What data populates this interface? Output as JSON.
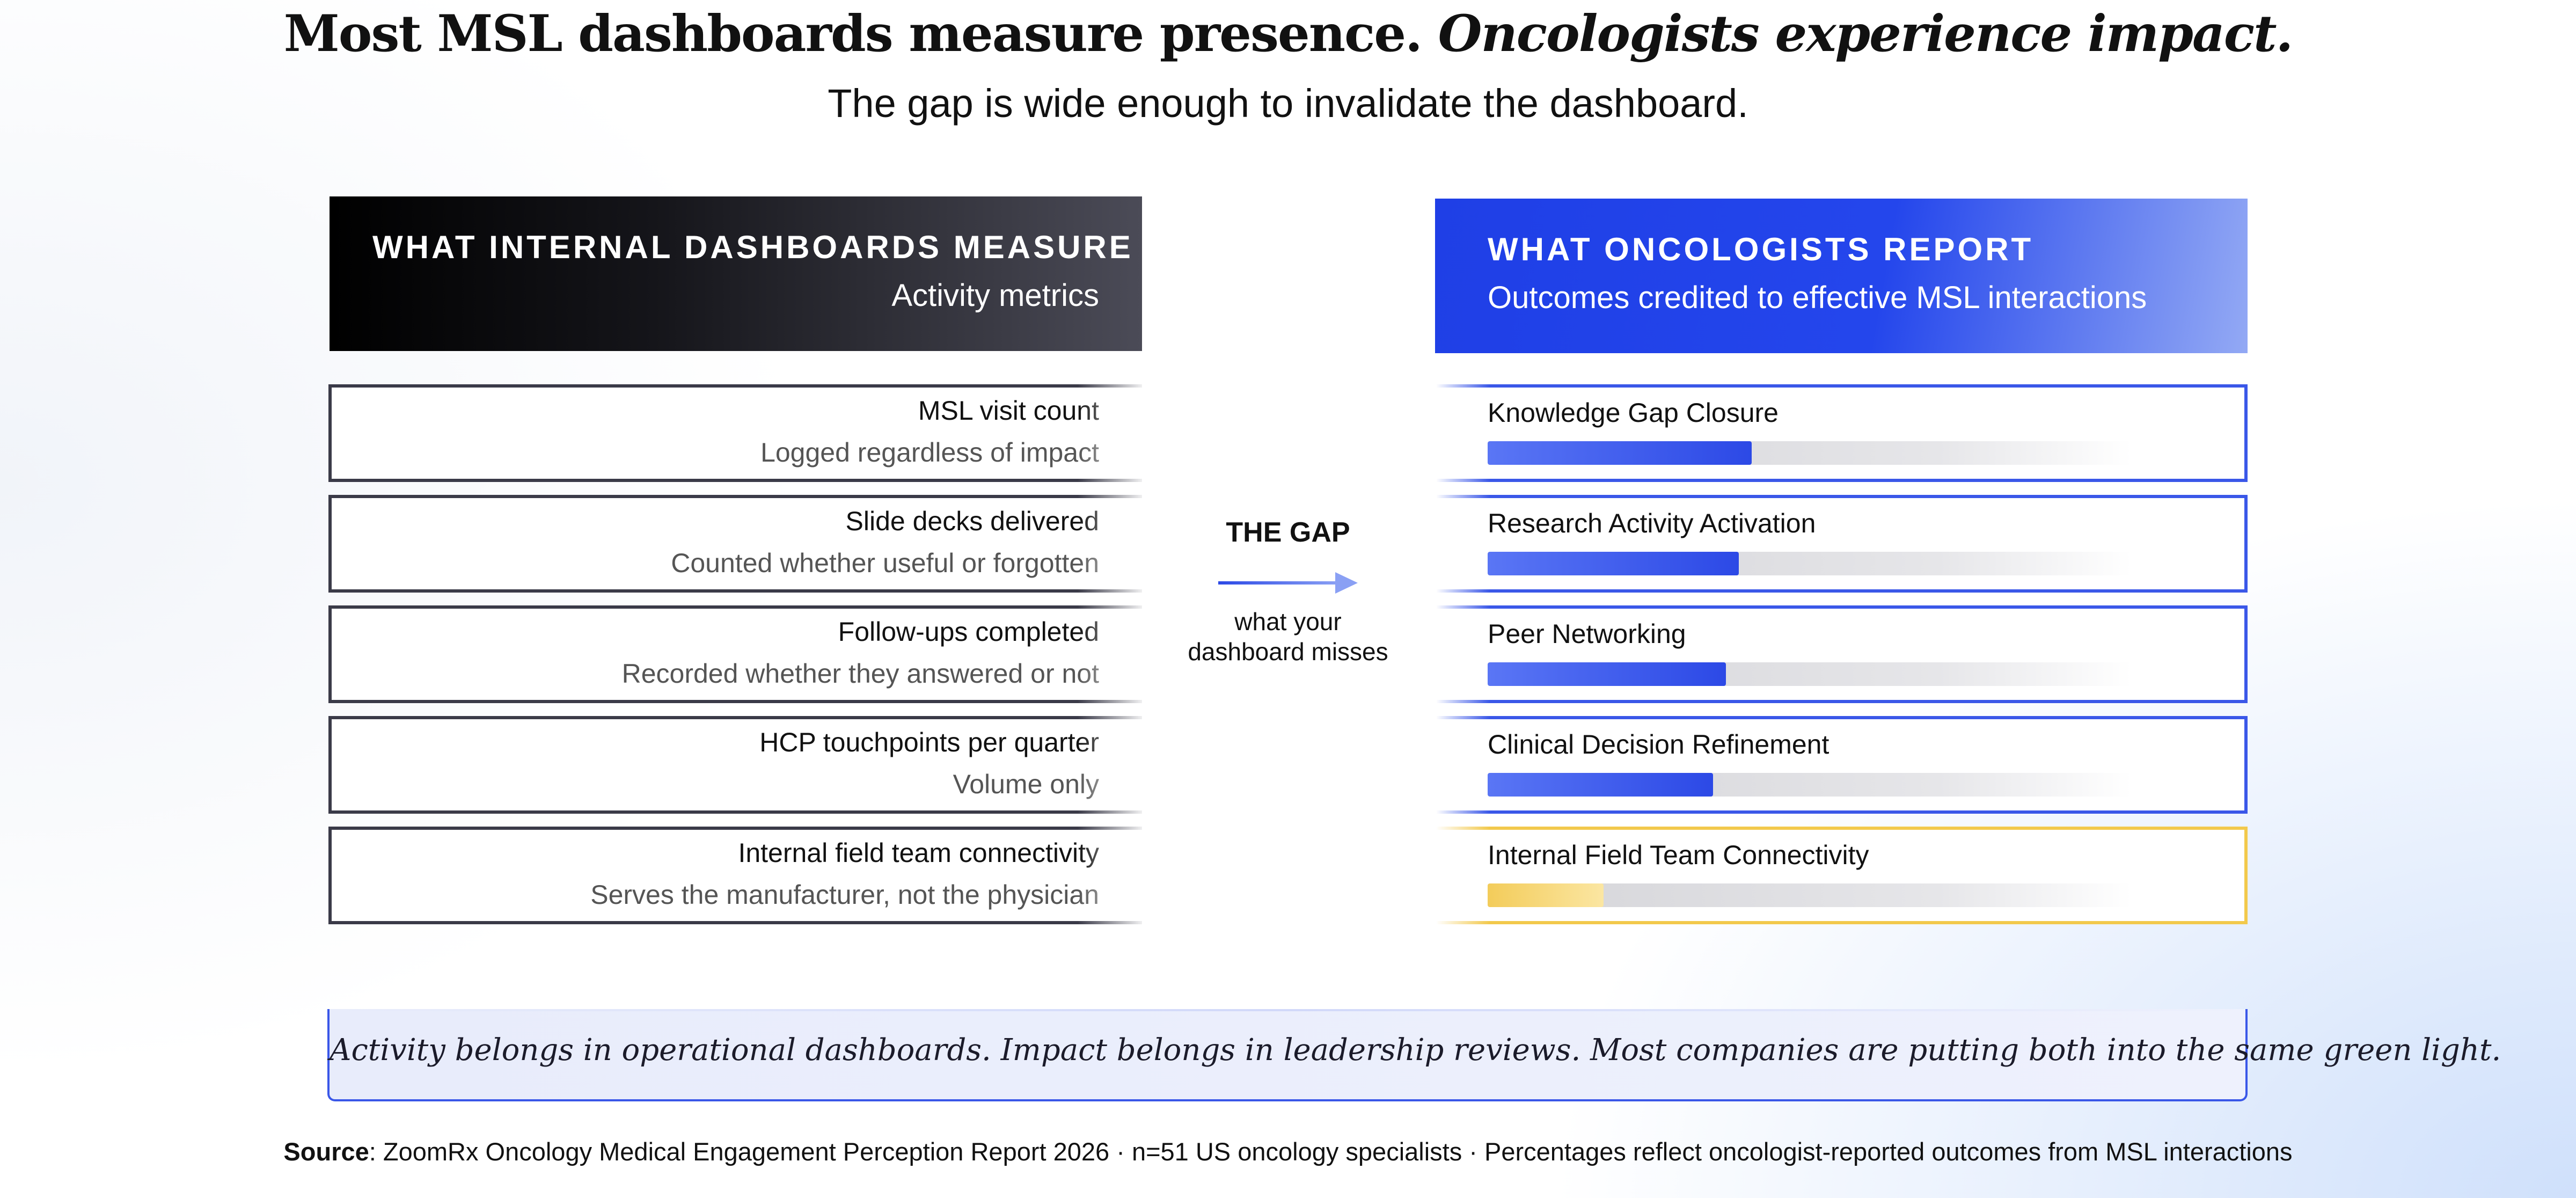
{
  "header": {
    "title_part1": "Most MSL dashboards measure presence.",
    "title_part2": "Oncologists experience impact.",
    "subtitle": "The gap is wide enough to invalidate the dashboard."
  },
  "left_panel": {
    "title": "WHAT INTERNAL DASHBOARDS MEASURE",
    "subtitle": "Activity metrics",
    "items": [
      {
        "title": "MSL visit count",
        "sub": "Logged regardless of impact"
      },
      {
        "title": "Slide decks delivered",
        "sub": "Counted whether useful or forgotten"
      },
      {
        "title": "Follow-ups completed",
        "sub": "Recorded whether they answered or not"
      },
      {
        "title": "HCP touchpoints per quarter",
        "sub": "Volume only"
      },
      {
        "title": "Internal field team connectivity",
        "sub": "Serves the manufacturer, not the physician"
      }
    ]
  },
  "gap": {
    "title": "THE GAP",
    "caption_line1": "what your",
    "caption_line2": "dashboard misses"
  },
  "right_panel": {
    "title": "WHAT ONCOLOGISTS REPORT",
    "subtitle": "Outcomes credited to effective MSL interactions"
  },
  "chart_data": {
    "type": "bar",
    "orientation": "horizontal",
    "categories": [
      "Knowledge Gap Closure",
      "Research Activity Activation",
      "Peer Networking",
      "Clinical Decision Refinement",
      "Internal Field Team Connectivity"
    ],
    "values": [
      41,
      39,
      37,
      35,
      18
    ],
    "value_scale_max": 100,
    "highlight_category": "Internal Field Team Connectivity",
    "colors": {
      "default": "#2c49e6",
      "highlight": "#f3cc5a"
    }
  },
  "footer": {
    "quote": "Activity belongs in operational dashboards. Impact belongs in leadership reviews. Most companies are putting both into the same green light.",
    "source_label": "Source",
    "source_text": ": ZoomRx Oncology Medical Engagement Perception Report 2026 · n=51 US oncology specialists · Percentages reflect oncologist-reported outcomes from MSL interactions"
  }
}
